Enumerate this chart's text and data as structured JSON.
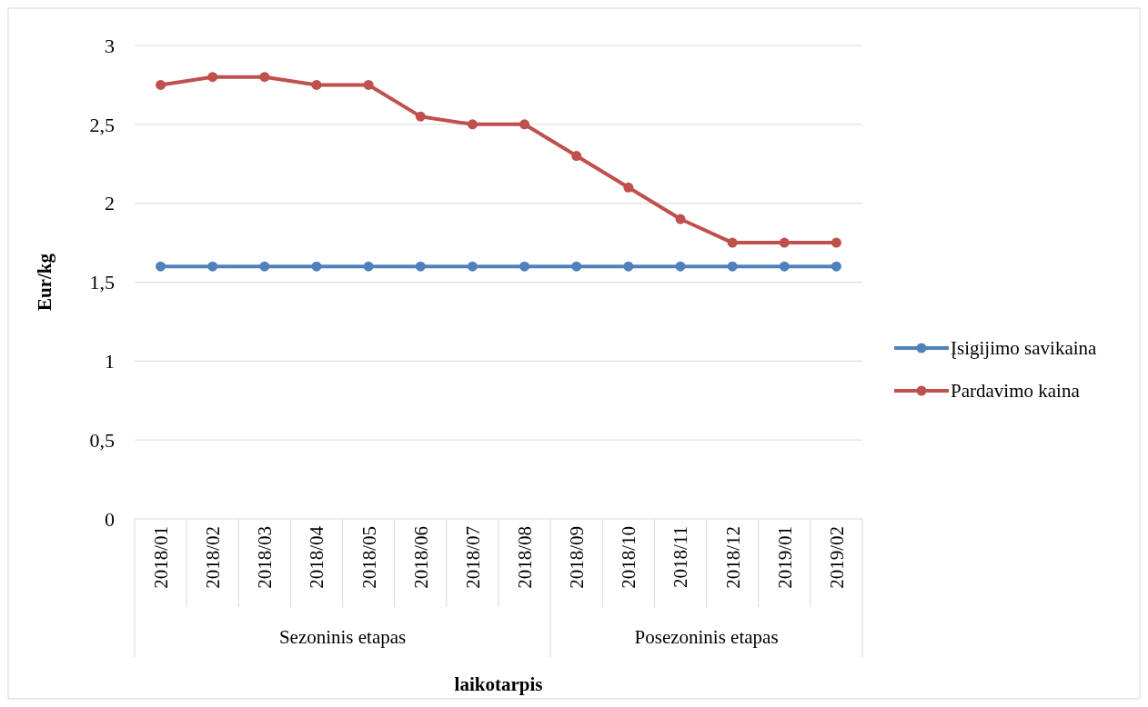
{
  "chart_data": {
    "type": "line",
    "xlabel": "laikotarpis",
    "ylabel": "Eur/kg",
    "categories": [
      "2018/01",
      "2018/02",
      "2018/03",
      "2018/04",
      "2018/05",
      "2018/06",
      "2018/07",
      "2018/08",
      "2018/09",
      "2018/10",
      "2018/11",
      "2018/12",
      "2019/01",
      "2019/02"
    ],
    "series": [
      {
        "name": "Įsigijimo savikaina",
        "color": "#4f81bd",
        "values": [
          1.6,
          1.6,
          1.6,
          1.6,
          1.6,
          1.6,
          1.6,
          1.6,
          1.6,
          1.6,
          1.6,
          1.6,
          1.6,
          1.6
        ]
      },
      {
        "name": "Pardavimo kaina",
        "color": "#c0504d",
        "values": [
          2.75,
          2.8,
          2.8,
          2.75,
          2.75,
          2.55,
          2.5,
          2.5,
          2.3,
          2.1,
          1.9,
          1.75,
          1.75,
          1.75
        ]
      }
    ],
    "ylim": [
      0,
      3
    ],
    "yticks": [
      0,
      {
        "value": 0.5,
        "label": "0,5"
      },
      1,
      {
        "value": 1.5,
        "label": "1,5"
      },
      2,
      {
        "value": 2.5,
        "label": "2,5"
      },
      3
    ],
    "annotations": [
      "Sezoninis etapas",
      "Posezoninis etapas"
    ],
    "grid": "y",
    "legend": "right",
    "marker": "circle",
    "line_style": "solid"
  }
}
